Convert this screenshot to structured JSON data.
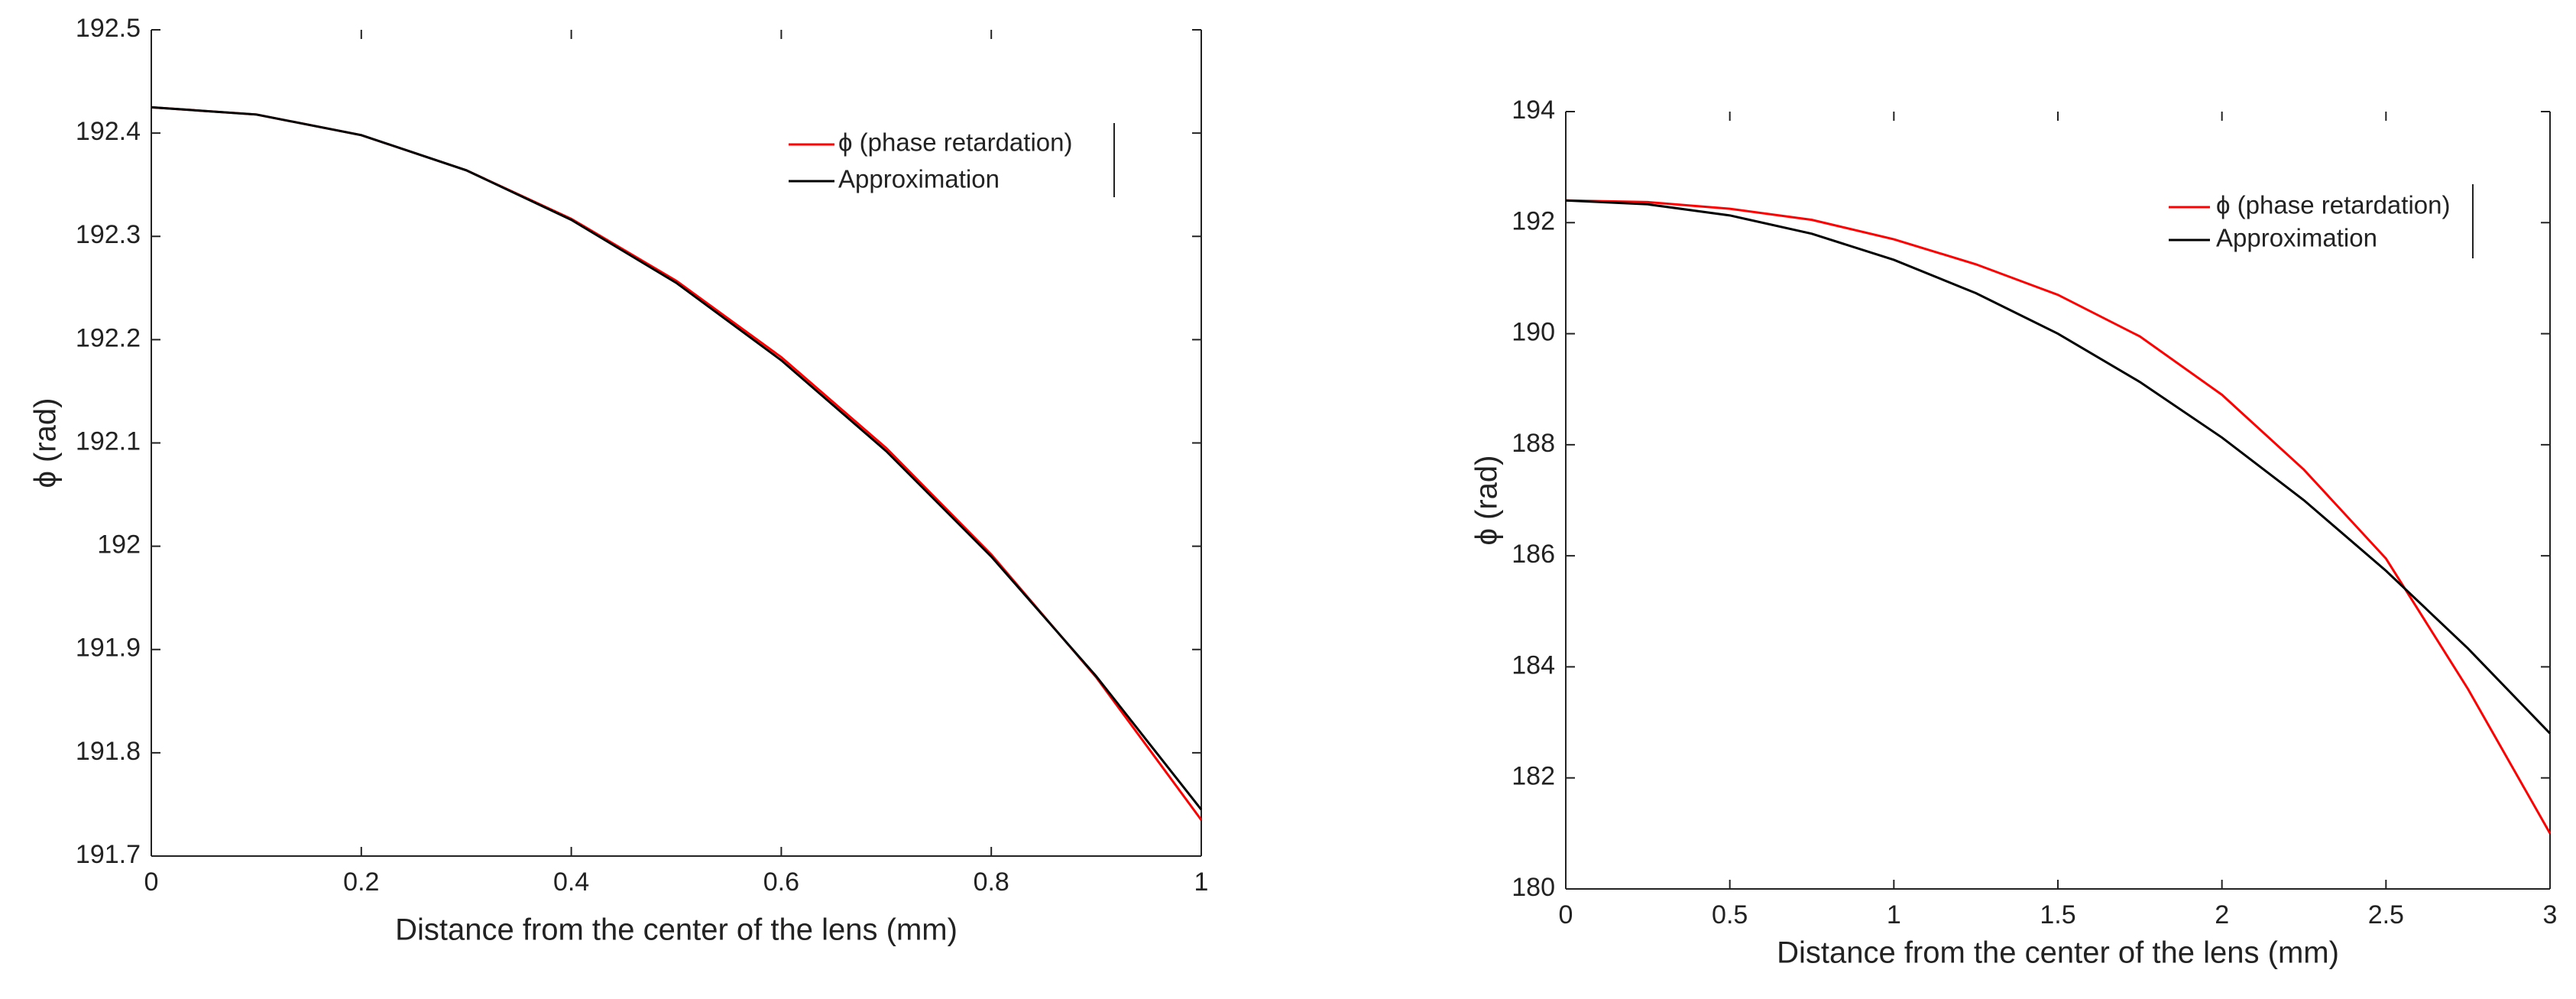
{
  "chart_data": [
    {
      "type": "line",
      "xlabel": "Distance from the center of the lens (mm)",
      "ylabel": "ϕ (rad)",
      "x": [
        0,
        0.1,
        0.2,
        0.3,
        0.4,
        0.5,
        0.6,
        0.7,
        0.8,
        0.9,
        1
      ],
      "series": [
        {
          "name": "ϕ (phase retardation)",
          "color": "#ff0000",
          "values": [
            192.425,
            192.418,
            192.398,
            192.364,
            192.317,
            192.257,
            192.183,
            192.095,
            191.992,
            191.873,
            191.735
          ]
        },
        {
          "name": "Approximation",
          "color": "#000000",
          "values": [
            192.425,
            192.418,
            192.398,
            192.364,
            192.316,
            192.255,
            192.18,
            192.092,
            191.99,
            191.874,
            191.745
          ]
        }
      ],
      "xlim": [
        0,
        1
      ],
      "ylim": [
        191.7,
        192.5
      ],
      "xticks": [
        0,
        0.2,
        0.4,
        0.6,
        0.8,
        1
      ],
      "yticks": [
        191.7,
        191.8,
        191.9,
        192,
        192.1,
        192.2,
        192.3,
        192.4,
        192.5
      ]
    },
    {
      "type": "line",
      "xlabel": "Distance from the center of the lens (mm)",
      "ylabel": "ϕ (rad)",
      "x": [
        0,
        0.25,
        0.5,
        0.75,
        1,
        1.25,
        1.5,
        1.75,
        2,
        2.25,
        2.5,
        2.75,
        3
      ],
      "series": [
        {
          "name": "ϕ (phase retardation)",
          "color": "#ff0000",
          "values": [
            192.4,
            192.37,
            192.25,
            192.05,
            191.7,
            191.25,
            190.7,
            189.95,
            188.9,
            187.55,
            185.95,
            183.6,
            181.0
          ]
        },
        {
          "name": "Approximation",
          "color": "#000000",
          "values": [
            192.4,
            192.33,
            192.13,
            191.8,
            191.33,
            190.73,
            190.0,
            189.13,
            188.13,
            187.0,
            185.73,
            184.33,
            182.8
          ]
        }
      ],
      "xlim": [
        0,
        3
      ],
      "ylim": [
        180,
        194
      ],
      "xticks": [
        0,
        0.5,
        1,
        1.5,
        2,
        2.5,
        3
      ],
      "yticks": [
        180,
        182,
        184,
        186,
        188,
        190,
        192,
        194
      ]
    }
  ]
}
